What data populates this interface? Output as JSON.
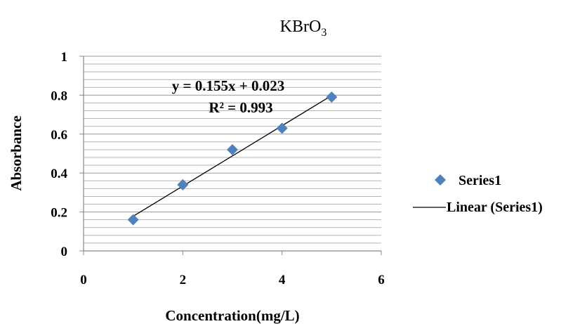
{
  "chart_data": {
    "type": "scatter",
    "title": "KBrO",
    "title_subscript": "3",
    "xlabel": "Concentration(mg/L)",
    "ylabel": "Absorbance",
    "xlim": [
      0,
      6
    ],
    "ylim": [
      0,
      1
    ],
    "x_ticks": [
      "0",
      "2",
      "4",
      "6"
    ],
    "y_ticks": [
      "0",
      "0.2",
      "0.4",
      "0.6",
      "0.8",
      "1"
    ],
    "grid": "horizontal minor lines every 0.04",
    "series": [
      {
        "name": "Series1",
        "marker": "diamond",
        "color": "#4f81bd",
        "x": [
          1,
          2,
          3,
          4,
          5
        ],
        "y": [
          0.16,
          0.34,
          0.52,
          0.63,
          0.79
        ]
      }
    ],
    "trendline": {
      "name": "Linear (Series1)",
      "slope": 0.155,
      "intercept": 0.023,
      "x_range": [
        1,
        5
      ],
      "equation": "y = 0.155x + 0.023",
      "r_squared": "R² = 0.993",
      "color": "#000000"
    },
    "legend_position": "right"
  }
}
